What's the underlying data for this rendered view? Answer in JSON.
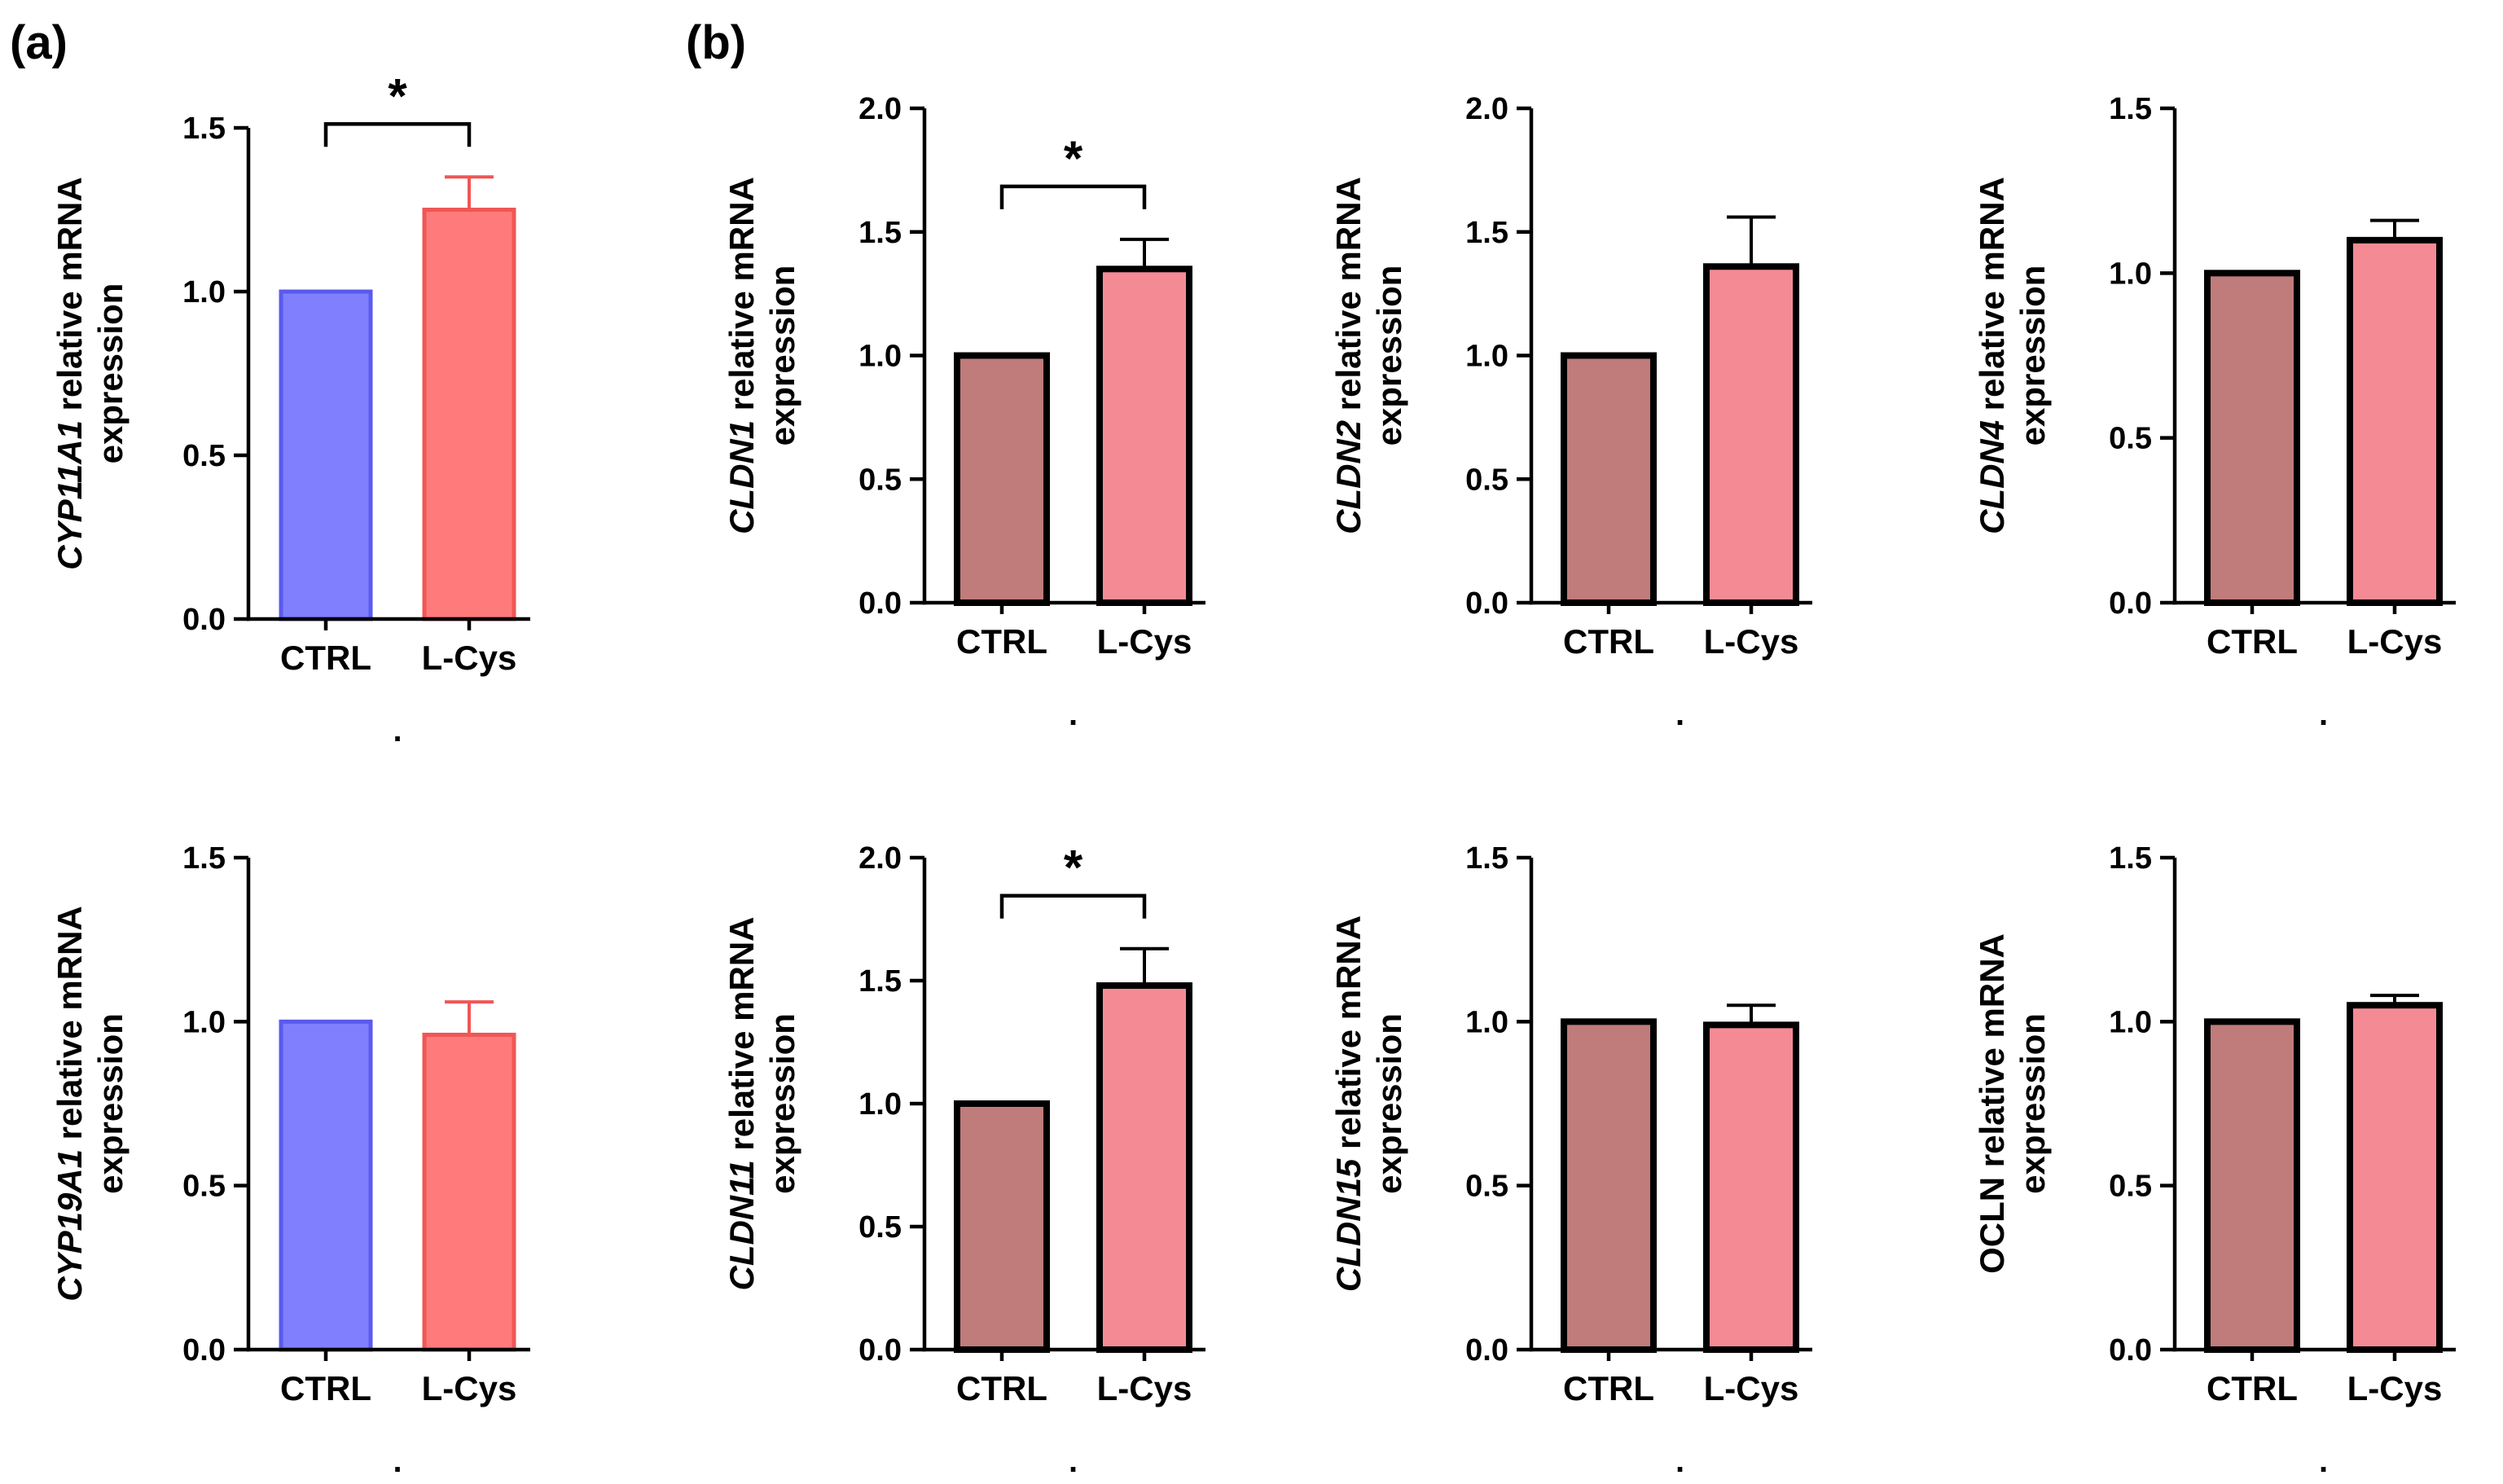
{
  "panel_labels": {
    "a": "(a)",
    "b": "(b)"
  },
  "colors": {
    "a_ctrl_fill": "#8080ff",
    "a_ctrl_stroke": "#5a5aee",
    "a_lcys_fill": "#ff7b7b",
    "a_lcys_stroke": "#f05656",
    "b_ctrl_fill": "#c07b7b",
    "b_lcys_fill": "#f48b94",
    "b_stroke": "#000000"
  },
  "chart_data": [
    {
      "id": "cyp11a1",
      "panel": "a",
      "type": "bar",
      "categories": [
        "CTRL",
        "L-Cys"
      ],
      "values": [
        1.0,
        1.25
      ],
      "errors": [
        0,
        0.1
      ],
      "ylabel_gene": "CYP11A1",
      "ylabel_rest": "relative mRNA",
      "ylabel_line2": "expression",
      "ylim": [
        0,
        1.5
      ],
      "yticks": [
        "0.0",
        "0.5",
        "1.0",
        "1.5"
      ],
      "significance": "*",
      "footnote": "."
    },
    {
      "id": "cldn1",
      "panel": "b",
      "type": "bar",
      "categories": [
        "CTRL",
        "L-Cys"
      ],
      "values": [
        1.0,
        1.35
      ],
      "errors": [
        0,
        0.12
      ],
      "ylabel_gene": "CLDN1",
      "ylabel_rest": "relative mRNA",
      "ylabel_line2": "expression",
      "ylim": [
        0,
        2.0
      ],
      "yticks": [
        "0.0",
        "0.5",
        "1.0",
        "1.5",
        "2.0"
      ],
      "significance": "*",
      "footnote": "."
    },
    {
      "id": "cldn2",
      "panel": "b",
      "type": "bar",
      "categories": [
        "CTRL",
        "L-Cys"
      ],
      "values": [
        1.0,
        1.36
      ],
      "errors": [
        0,
        0.2
      ],
      "ylabel_gene": "CLDN2",
      "ylabel_rest": "relative mRNA",
      "ylabel_line2": "expression",
      "ylim": [
        0,
        2.0
      ],
      "yticks": [
        "0.0",
        "0.5",
        "1.0",
        "1.5",
        "2.0"
      ],
      "significance": "",
      "footnote": "."
    },
    {
      "id": "cldn4",
      "panel": "b",
      "type": "bar",
      "categories": [
        "CTRL",
        "L-Cys"
      ],
      "values": [
        1.0,
        1.1
      ],
      "errors": [
        0,
        0.06
      ],
      "ylabel_gene": "CLDN4",
      "ylabel_rest": "relative mRNA",
      "ylabel_line2": "expression",
      "ylim": [
        0,
        1.5
      ],
      "yticks": [
        "0.0",
        "0.5",
        "1.0",
        "1.5"
      ],
      "significance": "",
      "footnote": "."
    },
    {
      "id": "cyp19a1",
      "panel": "a",
      "type": "bar",
      "categories": [
        "CTRL",
        "L-Cys"
      ],
      "values": [
        1.0,
        0.96
      ],
      "errors": [
        0,
        0.1
      ],
      "ylabel_gene": "CYP19A1",
      "ylabel_rest": "relative mRNA",
      "ylabel_line2": "expression",
      "ylim": [
        0,
        1.5
      ],
      "yticks": [
        "0.0",
        "0.5",
        "1.0",
        "1.5"
      ],
      "significance": "",
      "footnote": "."
    },
    {
      "id": "cldn11",
      "panel": "b",
      "type": "bar",
      "categories": [
        "CTRL",
        "L-Cys"
      ],
      "values": [
        1.0,
        1.48
      ],
      "errors": [
        0,
        0.15
      ],
      "ylabel_gene": "CLDN11",
      "ylabel_rest": "relative mRNA",
      "ylabel_line2": "expression",
      "ylim": [
        0,
        2.0
      ],
      "yticks": [
        "0.0",
        "0.5",
        "1.0",
        "1.5",
        "2.0"
      ],
      "significance": "*",
      "footnote": "."
    },
    {
      "id": "cldn15",
      "panel": "b",
      "type": "bar",
      "categories": [
        "CTRL",
        "L-Cys"
      ],
      "values": [
        1.0,
        0.99
      ],
      "errors": [
        0,
        0.06
      ],
      "ylabel_gene": "CLDN15",
      "ylabel_rest": "relative mRNA",
      "ylabel_line2": "expression",
      "ylim": [
        0,
        1.5
      ],
      "yticks": [
        "0.0",
        "0.5",
        "1.0",
        "1.5"
      ],
      "significance": "",
      "footnote": "."
    },
    {
      "id": "ocln",
      "panel": "b",
      "type": "bar",
      "categories": [
        "CTRL",
        "L-Cys"
      ],
      "values": [
        1.0,
        1.05
      ],
      "errors": [
        0,
        0.03
      ],
      "ylabel_gene": "",
      "ylabel_rest": "OCLN relative mRNA",
      "ylabel_line2": "expression",
      "ylim": [
        0,
        1.5
      ],
      "yticks": [
        "0.0",
        "0.5",
        "1.0",
        "1.5"
      ],
      "significance": "",
      "footnote": "."
    }
  ]
}
